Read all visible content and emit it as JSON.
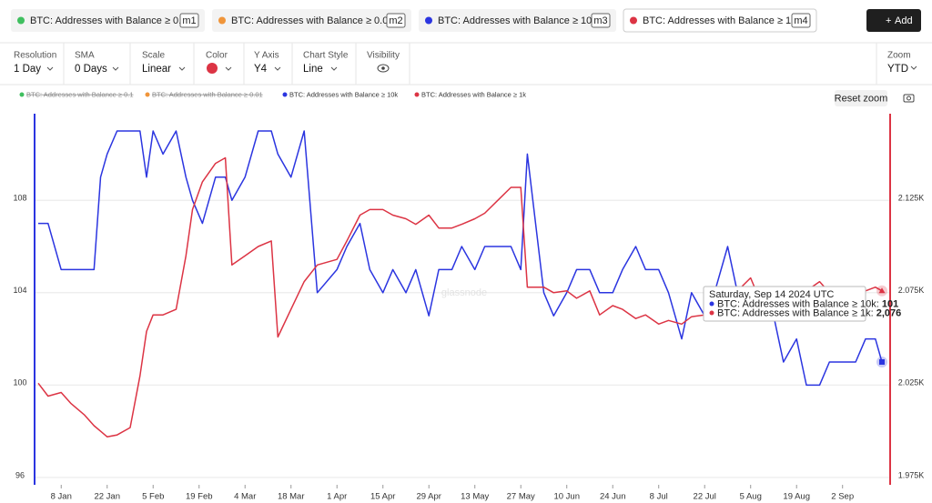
{
  "ui": {
    "tabs": [
      {
        "label": "BTC: Addresses with Balance ≥ 0.1",
        "tag": "m1",
        "color": "#3fbf5f"
      },
      {
        "label": "BTC: Addresses with Balance ≥ 0.01",
        "tag": "m2",
        "color": "#f0953a"
      },
      {
        "label": "BTC: Addresses with Balance ≥ 10k",
        "tag": "m3",
        "color": "#2b35e0"
      },
      {
        "label": "BTC: Addresses with Balance ≥ 1k",
        "tag": "m4",
        "color": "#dc3444"
      }
    ],
    "add_button": "Add",
    "controls": [
      {
        "label": "Resolution",
        "value": "1 Day"
      },
      {
        "label": "SMA",
        "value": "0 Days"
      },
      {
        "label": "Scale",
        "value": "Linear"
      },
      {
        "label": "Color",
        "value": null
      },
      {
        "label": "Y Axis",
        "value": "Y4"
      },
      {
        "label": "Chart Style",
        "value": "Line"
      },
      {
        "label": "Visibility",
        "value": null
      }
    ],
    "zoom": {
      "label": "Zoom",
      "value": "YTD"
    },
    "reset_zoom": "Reset zoom",
    "watermark": "glassnode",
    "tooltip": {
      "date": "Saturday, Sep 14 2024 UTC",
      "rows": [
        {
          "label": "BTC: Addresses with Balance ≥ 10k:",
          "value": "101"
        },
        {
          "label": "BTC: Addresses with Balance ≥ 1k:",
          "value": "2,076"
        }
      ]
    }
  },
  "chart_data": {
    "type": "line",
    "hidden_series": [
      {
        "name": "BTC: Addresses with Balance ≥ 0.1",
        "color": "#3fbf5f"
      },
      {
        "name": "BTC: Addresses with Balance ≥ 0.01",
        "color": "#f0953a"
      }
    ],
    "x": [
      "1 Jan",
      "4 Jan",
      "8 Jan",
      "11 Jan",
      "15 Jan",
      "18 Jan",
      "20 Jan",
      "22 Jan",
      "25 Jan",
      "29 Jan",
      "1 Feb",
      "3 Feb",
      "5 Feb",
      "8 Feb",
      "12 Feb",
      "15 Feb",
      "17 Feb",
      "20 Feb",
      "24 Feb",
      "27 Feb",
      "29 Feb",
      "4 Mar",
      "8 Mar",
      "12 Mar",
      "14 Mar",
      "18 Mar",
      "22 Mar",
      "26 Mar",
      "1 Apr",
      "4 Apr",
      "8 Apr",
      "11 Apr",
      "15 Apr",
      "18 Apr",
      "22 Apr",
      "25 Apr",
      "29 Apr",
      "2 May",
      "6 May",
      "9 May",
      "13 May",
      "16 May",
      "20 May",
      "24 May",
      "27 May",
      "29 May",
      "3 Jun",
      "6 Jun",
      "10 Jun",
      "13 Jun",
      "17 Jun",
      "20 Jun",
      "24 Jun",
      "27 Jun",
      "1 Jul",
      "4 Jul",
      "8 Jul",
      "11 Jul",
      "15 Jul",
      "18 Jul",
      "22 Jul",
      "25 Jul",
      "29 Jul",
      "1 Aug",
      "5 Aug",
      "9 Aug",
      "12 Aug",
      "15 Aug",
      "19 Aug",
      "22 Aug",
      "26 Aug",
      "29 Aug",
      "2 Sep",
      "6 Sep",
      "9 Sep",
      "12 Sep",
      "14 Sep"
    ],
    "series": [
      {
        "name": "BTC: Addresses with Balance ≥ 10k",
        "color": "#2b35e0",
        "axis": "y",
        "values": [
          107,
          107,
          105,
          105,
          105,
          105,
          109,
          110,
          111,
          111,
          111,
          109,
          111,
          110,
          111,
          109,
          108,
          107,
          109,
          109,
          108,
          109,
          111,
          111,
          110,
          109,
          111,
          104,
          105,
          106,
          107,
          105,
          104,
          105,
          104,
          105,
          103,
          105,
          105,
          106,
          105,
          106,
          106,
          106,
          105,
          110,
          104,
          103,
          104,
          105,
          105,
          104,
          104,
          105,
          106,
          105,
          105,
          104,
          102,
          104,
          103,
          104,
          106,
          104,
          104,
          103,
          103,
          101,
          102,
          100,
          100,
          101,
          101,
          101,
          102,
          102,
          101
        ]
      },
      {
        "name": "BTC: Addresses with Balance ≥ 1k",
        "color": "#dc3444",
        "axis": "y2",
        "values": [
          2026,
          2019,
          2021,
          2015,
          2009,
          2003,
          2000,
          1997,
          1998,
          2002,
          2030,
          2054,
          2063,
          2063,
          2066,
          2095,
          2120,
          2135,
          2145,
          2148,
          2090,
          2095,
          2100,
          2103,
          2051,
          2066,
          2081,
          2090,
          2093,
          2103,
          2117,
          2120,
          2120,
          2117,
          2115,
          2112,
          2117,
          2110,
          2110,
          2112,
          2115,
          2118,
          2125,
          2132,
          2132,
          2078,
          2078,
          2075,
          2076,
          2072,
          2076,
          2063,
          2068,
          2066,
          2061,
          2063,
          2058,
          2060,
          2058,
          2062,
          2063,
          2066,
          2071,
          2076,
          2083,
          2066,
          2071,
          2070,
          2071,
          2076,
          2081,
          2075,
          2071,
          2073,
          2076,
          2078,
          2076
        ]
      }
    ],
    "xlim": [
      "1 Jan",
      "14 Sep"
    ],
    "xticks": [
      "8 Jan",
      "22 Jan",
      "5 Feb",
      "19 Feb",
      "4 Mar",
      "18 Mar",
      "1 Apr",
      "15 Apr",
      "29 Apr",
      "13 May",
      "27 May",
      "10 Jun",
      "24 Jun",
      "8 Jul",
      "22 Jul",
      "5 Aug",
      "19 Aug",
      "2 Sep"
    ],
    "ylim": [
      95.8,
      111.75
    ],
    "yticks": [
      96,
      100,
      104,
      108
    ],
    "y2lim": [
      1972.5,
      2171.875
    ],
    "y2ticks": [
      {
        "value": 1975,
        "label": "1.975K"
      },
      {
        "value": 2025,
        "label": "2.025K"
      },
      {
        "value": 2075,
        "label": "2.075K"
      },
      {
        "value": 2125,
        "label": "2.125K"
      }
    ],
    "grid": true
  }
}
